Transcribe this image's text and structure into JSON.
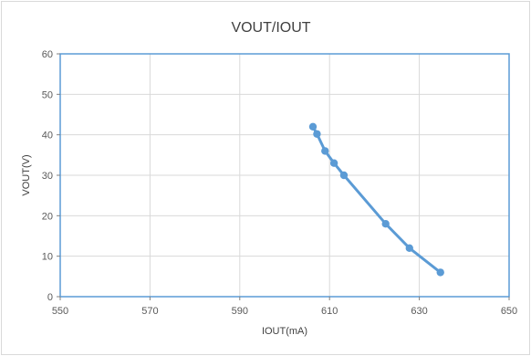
{
  "chart_data": {
    "type": "scatter",
    "title": "VOUT/IOUT",
    "xlabel": "IOUT(mA)",
    "ylabel": "VOUT(V)",
    "xlim": [
      550,
      650
    ],
    "ylim": [
      0,
      60
    ],
    "xticks": [
      "550",
      "570",
      "590",
      "610",
      "630",
      "650"
    ],
    "yticks": [
      "0",
      "10",
      "20",
      "30",
      "40",
      "50",
      "60"
    ],
    "grid": true,
    "legend": "none",
    "series": [
      {
        "color": "#5b9bd5",
        "points": [
          {
            "x": 606.3,
            "y": 42
          },
          {
            "x": 607.2,
            "y": 40.2
          },
          {
            "x": 609.0,
            "y": 36
          },
          {
            "x": 611.0,
            "y": 33
          },
          {
            "x": 613.2,
            "y": 30
          },
          {
            "x": 622.5,
            "y": 18
          },
          {
            "x": 627.8,
            "y": 12
          },
          {
            "x": 634.7,
            "y": 6
          }
        ]
      }
    ]
  }
}
